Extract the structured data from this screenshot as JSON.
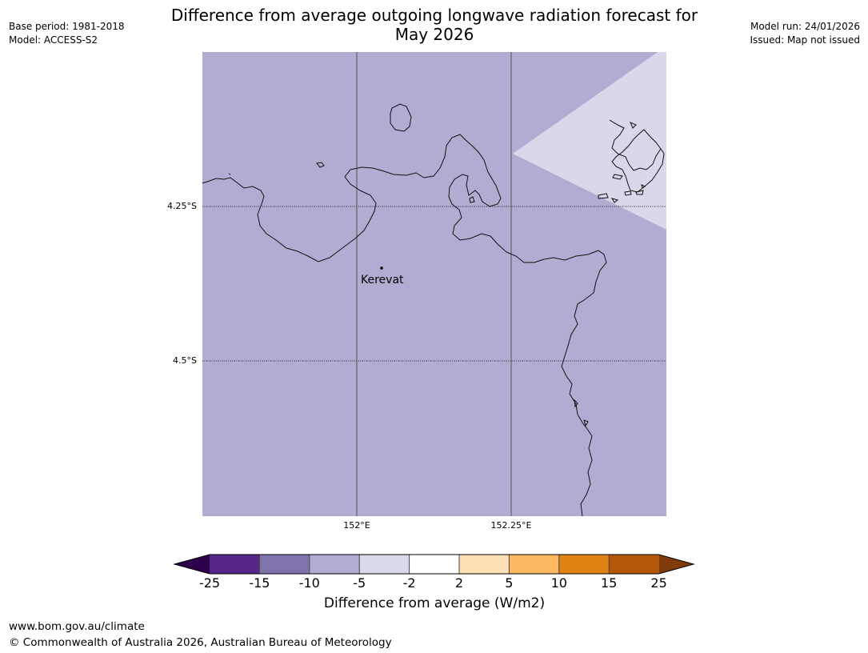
{
  "header": {
    "title_line1": "Difference from average outgoing longwave radiation forecast for",
    "title_line2": "May 2026",
    "base_period": "Base period: 1981-2018",
    "model": "Model: ACCESS-S2",
    "model_run": "Model run: 24/01/2026",
    "issued": "Issued: Map not issued"
  },
  "map": {
    "lat_labels": [
      "4.25°S",
      "4.5°S"
    ],
    "lon_labels": [
      "152°E",
      "152.25°E"
    ],
    "places": [
      {
        "name": "Kerevat"
      }
    ],
    "fill_colors": {
      "base": "#b2abd2",
      "anomaly_patch": "#d8d8ea"
    }
  },
  "colorbar": {
    "title": "Difference from average (W/m2)",
    "ticks": [
      "-25",
      "-15",
      "-10",
      "-5",
      "-2",
      "2",
      "5",
      "10",
      "15",
      "25"
    ],
    "colors": [
      "#2d004b",
      "#542788",
      "#8073ac",
      "#b2abd2",
      "#d8daeb",
      "#ffffff",
      "#fee0b6",
      "#fdb863",
      "#e08214",
      "#b35806",
      "#7f3b08"
    ]
  },
  "footer": {
    "url": "www.bom.gov.au/climate",
    "copyright": "© Commonwealth of Australia 2026, Australian Bureau of Meteorology"
  }
}
